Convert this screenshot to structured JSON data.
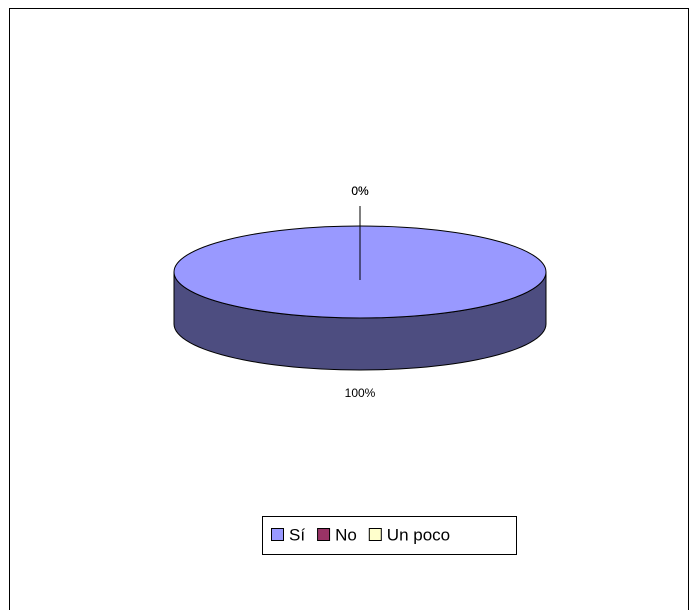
{
  "chart_data": {
    "type": "pie",
    "categories": [
      "Sí",
      "No",
      "Un poco"
    ],
    "values": [
      100,
      0,
      0
    ],
    "value_labels": [
      "100%",
      "0%",
      "0%"
    ],
    "colors": [
      "#9999ff",
      "#993366",
      "#ffffcc"
    ],
    "legend": "bottom"
  }
}
